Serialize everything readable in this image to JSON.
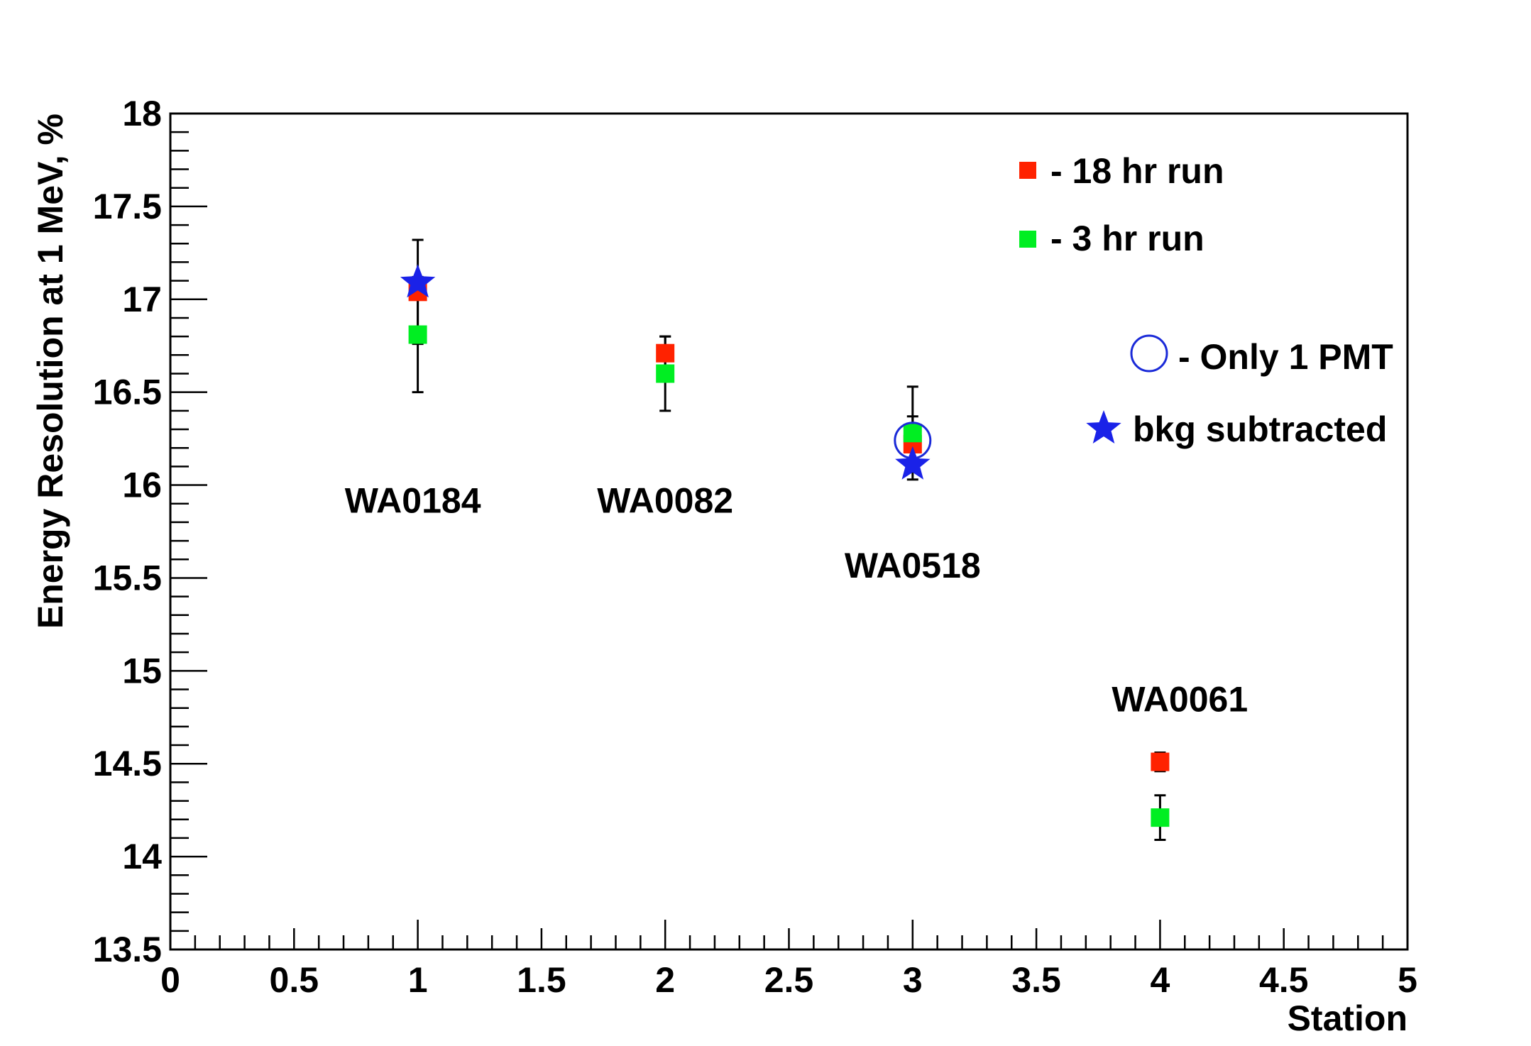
{
  "chart_data": {
    "type": "scatter",
    "xlabel": "Station",
    "ylabel": "Energy Resolution at 1 MeV, %",
    "xlim": [
      0,
      5
    ],
    "ylim": [
      13.5,
      18
    ],
    "x_ticks": [
      "0",
      "0.5",
      "1",
      "1.5",
      "2",
      "2.5",
      "3",
      "3.5",
      "4",
      "4.5",
      "5"
    ],
    "y_ticks": [
      "13.5",
      "14",
      "14.5",
      "15",
      "15.5",
      "16",
      "16.5",
      "17",
      "17.5",
      "18"
    ],
    "grid": false,
    "legend_position": "top-right",
    "series": [
      {
        "name": "- 18 hr run",
        "marker": "square",
        "color": "#ff2200",
        "points": [
          {
            "x": 1,
            "y": 17.04,
            "err": 0.28
          },
          {
            "x": 2,
            "y": 16.71,
            "err": 0.09
          },
          {
            "x": 3,
            "y": 16.22,
            "err": 0.15
          },
          {
            "x": 4,
            "y": 14.51,
            "err": 0.05
          }
        ]
      },
      {
        "name": "- 3 hr run",
        "marker": "square",
        "color": "#00ee22",
        "points": [
          {
            "x": 1,
            "y": 16.81,
            "err": 0.31
          },
          {
            "x": 2,
            "y": 16.6,
            "err": 0.2
          },
          {
            "x": 3,
            "y": 16.28,
            "err": 0.25
          },
          {
            "x": 4,
            "y": 14.21,
            "err": 0.12
          }
        ]
      },
      {
        "name": "- Only 1 PMT",
        "marker": "open-circle",
        "color": "#1a2ad8",
        "points": [
          {
            "x": 3,
            "y": 16.24
          }
        ]
      },
      {
        "name": "bkg subtracted",
        "marker": "star",
        "color": "#1a22e8",
        "points": [
          {
            "x": 1,
            "y": 17.09
          },
          {
            "x": 3,
            "y": 16.11
          }
        ]
      }
    ],
    "annotations": [
      {
        "text": "WA0184",
        "x": 0.98,
        "y": 15.92
      },
      {
        "text": "WA0082",
        "x": 2.0,
        "y": 15.92
      },
      {
        "text": "WA0518",
        "x": 3.0,
        "y": 15.57
      },
      {
        "text": "WA0061",
        "x": 4.08,
        "y": 14.85
      }
    ]
  }
}
